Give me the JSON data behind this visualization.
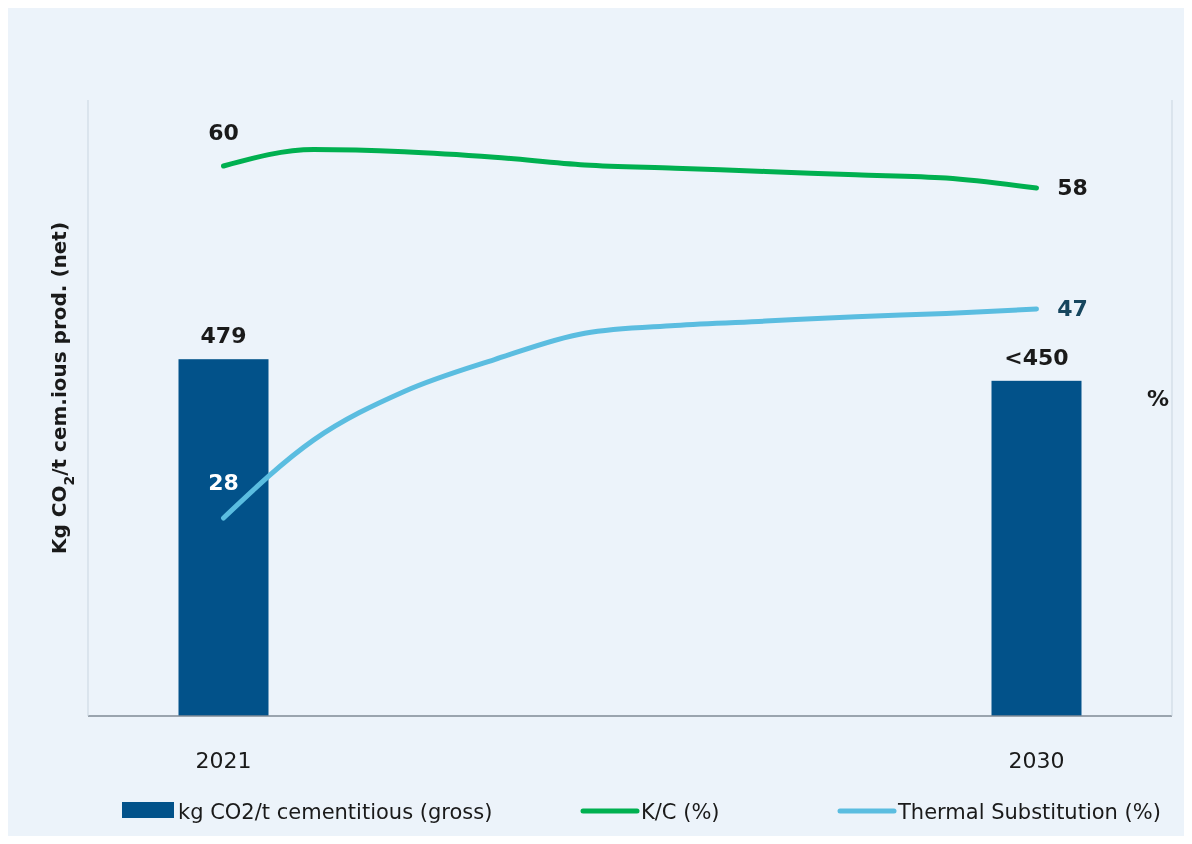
{
  "chart_data": {
    "type": "bar",
    "ylabel": "Kg CO$_{2}$/t cem.ious prod. (net)",
    "y2label": "%",
    "xlim": [
      2019.5,
      2031.5
    ],
    "xticks": [
      2021,
      2030
    ],
    "ylim": [
      0,
      827
    ],
    "y2lim": [
      10,
      66
    ],
    "legend": "bottom",
    "series": [
      {
        "name": "kg CO2/t cementitious (gross)",
        "color": "#02528a",
        "x": [
          2021,
          2030
        ],
        "values": [
          479,
          450
        ],
        "value_labels": [
          "479",
          "<450"
        ]
      },
      {
        "name": "K/C (%)",
        "type": "line",
        "axis": "y2",
        "color": "#00b050",
        "x": [
          2021,
          2022,
          2023,
          2024,
          2025,
          2026,
          2027,
          2028,
          2029,
          2030
        ],
        "values": [
          60,
          61.5,
          61.3,
          60.8,
          60.1,
          59.8,
          59.5,
          59.2,
          58.9,
          58
        ],
        "value_labels": [
          "60",
          null,
          null,
          null,
          null,
          null,
          null,
          null,
          null,
          "58"
        ]
      },
      {
        "name": "Thermal Substitution (%)",
        "type": "line",
        "axis": "y2",
        "color": "#5bbde0",
        "x": [
          2021,
          2022,
          2023,
          2024,
          2025,
          2026,
          2027,
          2028,
          2029,
          2030
        ],
        "values": [
          28,
          35.1,
          39.5,
          42.4,
          44.8,
          45.5,
          45.9,
          46.3,
          46.6,
          47
        ],
        "value_labels": [
          "28",
          null,
          null,
          null,
          null,
          null,
          null,
          null,
          null,
          "47"
        ]
      }
    ]
  }
}
